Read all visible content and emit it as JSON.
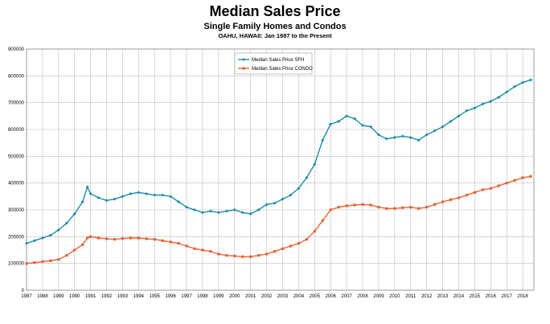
{
  "header": {
    "title": "Median Sales Price",
    "subtitle": "Single Family Homes and Condos",
    "caption": "OAHU, HAWAII: Jan 1987 to the Present"
  },
  "chart_data": {
    "type": "line",
    "title": "Median Sales Price",
    "subtitle": "Single Family Homes and Condos",
    "xlabel": "",
    "ylabel": "",
    "ylim": [
      0,
      900000
    ],
    "y_ticks": [
      0,
      100000,
      200000,
      300000,
      400000,
      500000,
      600000,
      700000,
      800000,
      900000
    ],
    "x_ticks": [
      "1987",
      "1988",
      "1989",
      "1990",
      "1991",
      "1992",
      "1993",
      "1994",
      "1995",
      "1996",
      "1997",
      "1998",
      "1999",
      "2000",
      "2001",
      "2002",
      "2003",
      "2004",
      "2005",
      "2006",
      "2007",
      "2008",
      "2009",
      "2010",
      "2011",
      "2012",
      "2013",
      "2014",
      "2015",
      "2016",
      "2017",
      "2018"
    ],
    "grid": true,
    "legend_position": "top-center",
    "series": [
      {
        "name": "Median Sales Price SFH",
        "color": "#1f8aa8",
        "x": [
          1987.0,
          1987.5,
          1988.0,
          1988.5,
          1989.0,
          1989.5,
          1990.0,
          1990.5,
          1990.8,
          1991.0,
          1991.5,
          1992.0,
          1992.5,
          1993.0,
          1993.5,
          1994.0,
          1994.5,
          1995.0,
          1995.5,
          1996.0,
          1996.5,
          1997.0,
          1997.5,
          1998.0,
          1998.5,
          1999.0,
          1999.5,
          2000.0,
          2000.5,
          2001.0,
          2001.5,
          2002.0,
          2002.5,
          2003.0,
          2003.5,
          2004.0,
          2004.5,
          2005.0,
          2005.5,
          2006.0,
          2006.5,
          2007.0,
          2007.5,
          2008.0,
          2008.5,
          2009.0,
          2009.5,
          2010.0,
          2010.5,
          2011.0,
          2011.5,
          2012.0,
          2012.5,
          2013.0,
          2013.5,
          2014.0,
          2014.5,
          2015.0,
          2015.5,
          2016.0,
          2016.5,
          2017.0,
          2017.5,
          2018.0,
          2018.5
        ],
        "values": [
          175000,
          185000,
          195000,
          205000,
          225000,
          250000,
          285000,
          330000,
          385000,
          360000,
          345000,
          335000,
          340000,
          350000,
          360000,
          365000,
          360000,
          355000,
          355000,
          350000,
          330000,
          310000,
          300000,
          290000,
          295000,
          290000,
          295000,
          300000,
          290000,
          285000,
          300000,
          320000,
          325000,
          340000,
          355000,
          380000,
          420000,
          470000,
          560000,
          620000,
          630000,
          650000,
          640000,
          615000,
          610000,
          580000,
          565000,
          570000,
          575000,
          570000,
          560000,
          580000,
          595000,
          610000,
          630000,
          650000,
          670000,
          680000,
          695000,
          705000,
          720000,
          740000,
          760000,
          775000,
          785000
        ]
      },
      {
        "name": "Median Sales Price CONDO",
        "color": "#e8643a",
        "x": [
          1987.0,
          1987.5,
          1988.0,
          1988.5,
          1989.0,
          1989.5,
          1990.0,
          1990.5,
          1990.8,
          1991.0,
          1991.5,
          1992.0,
          1992.5,
          1993.0,
          1993.5,
          1994.0,
          1994.5,
          1995.0,
          1995.5,
          1996.0,
          1996.5,
          1997.0,
          1997.5,
          1998.0,
          1998.5,
          1999.0,
          1999.5,
          2000.0,
          2000.5,
          2001.0,
          2001.5,
          2002.0,
          2002.5,
          2003.0,
          2003.5,
          2004.0,
          2004.5,
          2005.0,
          2005.5,
          2006.0,
          2006.5,
          2007.0,
          2007.5,
          2008.0,
          2008.5,
          2009.0,
          2009.5,
          2010.0,
          2010.5,
          2011.0,
          2011.5,
          2012.0,
          2012.5,
          2013.0,
          2013.5,
          2014.0,
          2014.5,
          2015.0,
          2015.5,
          2016.0,
          2016.5,
          2017.0,
          2017.5,
          2018.0,
          2018.5
        ],
        "values": [
          100000,
          103000,
          107000,
          110000,
          115000,
          130000,
          150000,
          170000,
          195000,
          200000,
          195000,
          192000,
          190000,
          193000,
          195000,
          195000,
          192000,
          190000,
          185000,
          180000,
          175000,
          165000,
          155000,
          150000,
          145000,
          135000,
          130000,
          128000,
          125000,
          125000,
          130000,
          135000,
          145000,
          155000,
          165000,
          175000,
          190000,
          220000,
          260000,
          300000,
          310000,
          315000,
          318000,
          320000,
          318000,
          310000,
          305000,
          305000,
          308000,
          310000,
          305000,
          310000,
          320000,
          330000,
          338000,
          345000,
          355000,
          365000,
          375000,
          380000,
          390000,
          400000,
          410000,
          420000,
          425000
        ]
      }
    ]
  }
}
